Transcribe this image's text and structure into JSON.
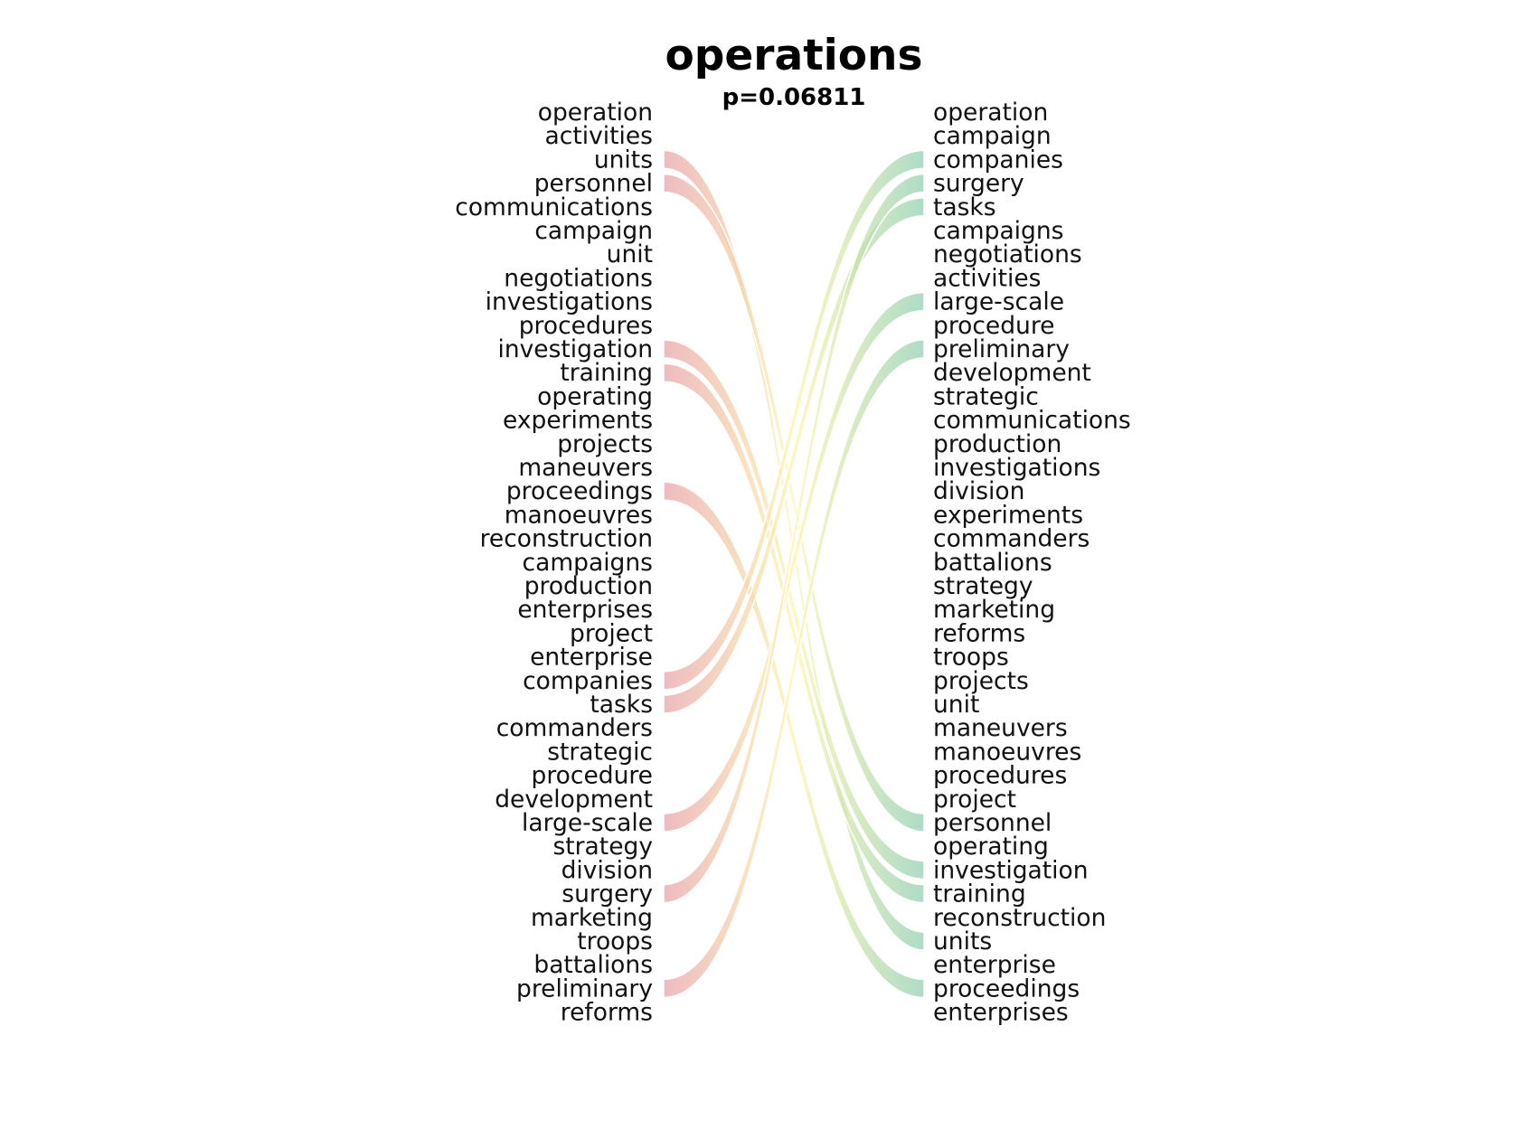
{
  "chart_data": {
    "type": "bump",
    "title": "operations",
    "subtitle": "p=0.06811",
    "left_labels": [
      "operation",
      "activities",
      "units",
      "personnel",
      "communications",
      "campaign",
      "unit",
      "negotiations",
      "investigations",
      "procedures",
      "investigation",
      "training",
      "operating",
      "experiments",
      "projects",
      "maneuvers",
      "proceedings",
      "manoeuvres",
      "reconstruction",
      "campaigns",
      "production",
      "enterprises",
      "project",
      "enterprise",
      "companies",
      "tasks",
      "commanders",
      "strategic",
      "procedure",
      "development",
      "large-scale",
      "strategy",
      "division",
      "surgery",
      "marketing",
      "troops",
      "battalions",
      "preliminary",
      "reforms"
    ],
    "right_labels": [
      "operation",
      "campaign",
      "companies",
      "surgery",
      "tasks",
      "campaigns",
      "negotiations",
      "activities",
      "large-scale",
      "procedure",
      "preliminary",
      "development",
      "strategic",
      "communications",
      "production",
      "investigations",
      "division",
      "experiments",
      "commanders",
      "battalions",
      "strategy",
      "marketing",
      "reforms",
      "troops",
      "projects",
      "unit",
      "maneuvers",
      "manoeuvres",
      "procedures",
      "project",
      "personnel",
      "operating",
      "investigation",
      "training",
      "reconstruction",
      "units",
      "enterprise",
      "proceedings",
      "enterprises"
    ],
    "links": [
      {
        "word": "units",
        "from": 2,
        "to": 35
      },
      {
        "word": "personnel",
        "from": 3,
        "to": 30
      },
      {
        "word": "investigation",
        "from": 10,
        "to": 32
      },
      {
        "word": "training",
        "from": 11,
        "to": 33
      },
      {
        "word": "proceedings",
        "from": 16,
        "to": 37
      },
      {
        "word": "companies",
        "from": 24,
        "to": 2
      },
      {
        "word": "tasks",
        "from": 25,
        "to": 4
      },
      {
        "word": "large-scale",
        "from": 30,
        "to": 8
      },
      {
        "word": "surgery",
        "from": 33,
        "to": 3
      },
      {
        "word": "preliminary",
        "from": 37,
        "to": 10
      }
    ],
    "colors": {
      "left_end": "#e8a0a8",
      "mid": "#fdf5a8",
      "right_end": "#8fceb0"
    }
  }
}
